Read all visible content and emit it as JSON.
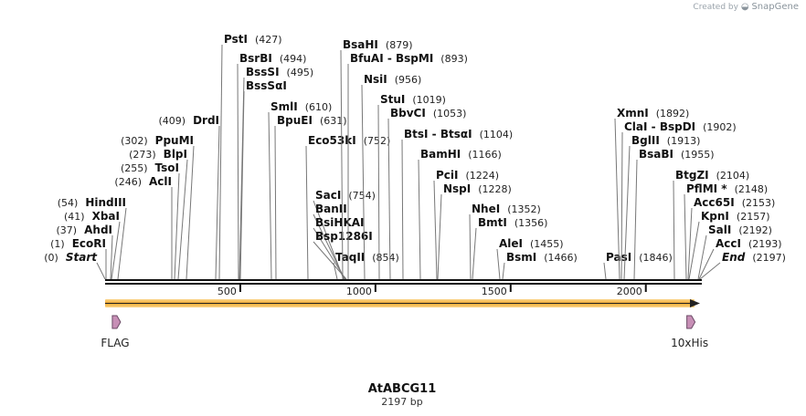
{
  "branding": {
    "created_by": "Created by",
    "app": "SnapGene"
  },
  "map": {
    "name": "AtABCG11",
    "length_label": "2197 bp",
    "length": 2197,
    "ruler_ticks": [
      "500",
      "1000",
      "1500",
      "2000"
    ],
    "features": [
      {
        "name": "FLAG",
        "start": 20,
        "end": 40,
        "color": "#c78fb6"
      },
      {
        "name": "10xHis",
        "start": 2145,
        "end": 2175,
        "color": "#c78fb6"
      }
    ],
    "orf_color": "#f2a72c",
    "sites": [
      {
        "name": "Start",
        "pos": "(0)",
        "side": "left",
        "italic": true
      },
      {
        "name": "EcoRI",
        "pos": "(1)",
        "side": "left"
      },
      {
        "name": "AhdI",
        "pos": "(37)",
        "side": "left"
      },
      {
        "name": "XbaI",
        "pos": "(41)",
        "side": "left"
      },
      {
        "name": "HindIII",
        "pos": "(54)",
        "side": "left"
      },
      {
        "name": "AclI",
        "pos": "(246)",
        "side": "left"
      },
      {
        "name": "TsoI",
        "pos": "(255)",
        "side": "left"
      },
      {
        "name": "BlpI",
        "pos": "(273)",
        "side": "left"
      },
      {
        "name": "PpuMI",
        "pos": "(302)",
        "side": "left"
      },
      {
        "name": "DrdI",
        "pos": "(409)",
        "side": "left"
      },
      {
        "name": "PstI",
        "pos": "(427)",
        "side": "right"
      },
      {
        "name": "BsrBI",
        "pos": "(494)",
        "side": "right"
      },
      {
        "name": "BssSI",
        "pos": "(495)",
        "side": "right"
      },
      {
        "name": "BssSαI",
        "pos": "",
        "side": "right"
      },
      {
        "name": "SmlI",
        "pos": "(610)",
        "side": "right"
      },
      {
        "name": "BpuEI",
        "pos": "(631)",
        "side": "right"
      },
      {
        "name": "Eco53kI",
        "pos": "(752)",
        "side": "right"
      },
      {
        "name": "SacI",
        "pos": "(754)",
        "side": "right"
      },
      {
        "name": "BanII",
        "pos": "",
        "side": "right"
      },
      {
        "name": "BsiHKAI",
        "pos": "",
        "side": "right"
      },
      {
        "name": "Bsp1286I",
        "pos": "",
        "side": "right"
      },
      {
        "name": "TaqII",
        "pos": "(854)",
        "side": "right"
      },
      {
        "name": "BsaHI",
        "pos": "(879)",
        "side": "right"
      },
      {
        "name": "BfuAI",
        "pos": "(893)",
        "side": "right",
        "pair": "BspMI"
      },
      {
        "name": "NsiI",
        "pos": "(956)",
        "side": "right"
      },
      {
        "name": "StuI",
        "pos": "(1019)",
        "side": "right"
      },
      {
        "name": "BbvCI",
        "pos": "(1053)",
        "side": "right"
      },
      {
        "name": "BtsI",
        "pos": "(1104)",
        "side": "right",
        "pair": "BtsαI"
      },
      {
        "name": "BamHI",
        "pos": "(1166)",
        "side": "right"
      },
      {
        "name": "PciI",
        "pos": "(1224)",
        "side": "right"
      },
      {
        "name": "NspI",
        "pos": "(1228)",
        "side": "right"
      },
      {
        "name": "NheI",
        "pos": "(1352)",
        "side": "right"
      },
      {
        "name": "BmtI",
        "pos": "(1356)",
        "side": "right"
      },
      {
        "name": "AleI",
        "pos": "(1455)",
        "side": "right"
      },
      {
        "name": "BsmI",
        "pos": "(1466)",
        "side": "right"
      },
      {
        "name": "PasI",
        "pos": "(1846)",
        "side": "right"
      },
      {
        "name": "XmnI",
        "pos": "(1892)",
        "side": "right"
      },
      {
        "name": "ClaI",
        "pos": "(1902)",
        "side": "right",
        "pair": "BspDI"
      },
      {
        "name": "BglII",
        "pos": "(1913)",
        "side": "right"
      },
      {
        "name": "BsaBI",
        "pos": "(1955)",
        "side": "right"
      },
      {
        "name": "BtgZI",
        "pos": "(2104)",
        "side": "right"
      },
      {
        "name": "PflMI",
        "pos": "(2148)",
        "side": "right",
        "star": "*"
      },
      {
        "name": "Acc65I",
        "pos": "(2153)",
        "side": "right"
      },
      {
        "name": "KpnI",
        "pos": "(2157)",
        "side": "right"
      },
      {
        "name": "SalI",
        "pos": "(2192)",
        "side": "right"
      },
      {
        "name": "AccI",
        "pos": "(2193)",
        "side": "right"
      },
      {
        "name": "End",
        "pos": "(2197)",
        "side": "right",
        "italic": true
      }
    ]
  }
}
